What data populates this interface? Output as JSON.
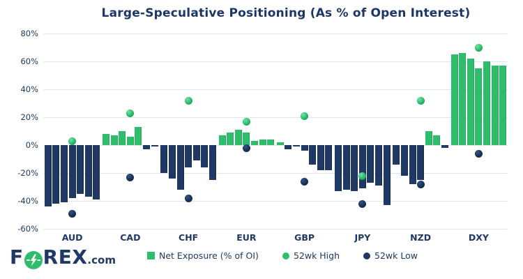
{
  "title": "Large-Speculative Positioning (As % of Open Interest)",
  "logo": {
    "pre": "F",
    "post": "REX",
    "suffix": ".com"
  },
  "legend": [
    {
      "label": "Net Exposure (% of OI)",
      "marker": "square",
      "color": "#2ebd6b"
    },
    {
      "label": "52wk High",
      "marker": "circle",
      "color": "#2ebd6b"
    },
    {
      "label": "52wk Low",
      "marker": "circle",
      "color": "#1f3864"
    }
  ],
  "colors": {
    "positive_bar": "#2ebd6b",
    "negative_bar": "#1f3864",
    "text_navy": "#1f3864",
    "gridline": "#dfe6ee",
    "background": "#ffffff"
  },
  "chart_data": {
    "type": "bar",
    "title": "Large-Speculative Positioning (As % of Open Interest)",
    "categories": [
      "AUD",
      "CAD",
      "CHF",
      "EUR",
      "GBP",
      "JPY",
      "NZD",
      "DXY"
    ],
    "series": [
      {
        "name": "Net Exposure (% of OI)",
        "type": "bar",
        "unit": "% of open interest",
        "values_by_category": [
          [
            -44,
            -42,
            -41,
            -38,
            -35,
            -37,
            -39
          ],
          [
            8,
            7,
            10,
            6,
            13,
            -3,
            -1
          ],
          [
            -20,
            -24,
            -32,
            -16,
            -11,
            -16,
            -25
          ],
          [
            7,
            9,
            11,
            9,
            3,
            4,
            4
          ],
          [
            2,
            -3,
            -1,
            -4,
            -14,
            -18,
            -18
          ],
          [
            -33,
            -32,
            -33,
            -31,
            -27,
            -29,
            -43
          ],
          [
            -14,
            -22,
            -28,
            -25,
            10,
            7,
            -2
          ],
          [
            65,
            66,
            62,
            55,
            60,
            57,
            57
          ]
        ]
      },
      {
        "name": "52wk High",
        "type": "point",
        "values": [
          3,
          23,
          32,
          17,
          21,
          -22,
          32,
          70
        ]
      },
      {
        "name": "52wk Low",
        "type": "point",
        "values": [
          -49,
          -23,
          -38,
          -2,
          -26,
          -42,
          -28,
          -6
        ]
      }
    ],
    "ylim": [
      -60,
      80
    ],
    "yticks": [
      "80%",
      "60%",
      "40%",
      "20%",
      "0%",
      "-20%",
      "-40%",
      "-60%"
    ],
    "grid": true,
    "legend_position": "bottom"
  }
}
